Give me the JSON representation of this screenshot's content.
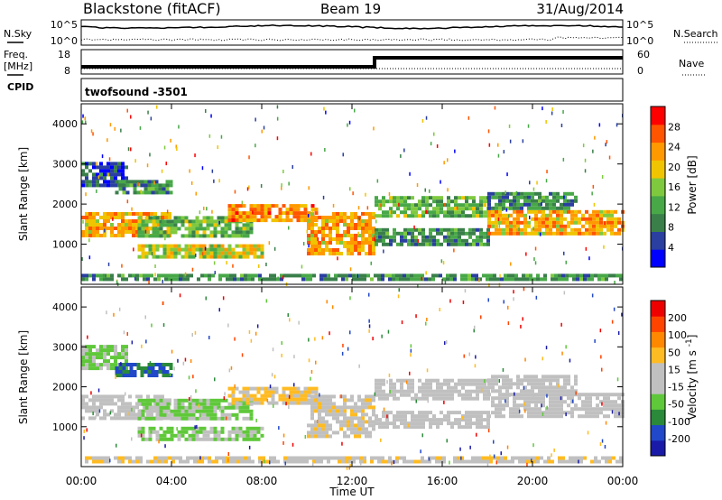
{
  "title": {
    "station": "Blackstone (fitACF)",
    "beam": "Beam 19",
    "date": "31/Aug/2014"
  },
  "noise_panel": {
    "left_label": "N.Sky",
    "left_ticks": [
      "10^5",
      "10^0"
    ],
    "right_ticks": [
      "10^5",
      "10^0"
    ],
    "right_label": "N.Search"
  },
  "freq_panel": {
    "left_label_line1": "Freq.",
    "left_label_line2": "[MHz]",
    "left_ticks": [
      "18",
      "8"
    ],
    "right_ticks": [
      "60",
      "0"
    ],
    "right_label": "Nave"
  },
  "cpid_panel": {
    "label": "CPID",
    "value": "twofsound -3501"
  },
  "colors": {
    "power_scale": [
      "#0000ff",
      "#2a3fa0",
      "#3a7f4a",
      "#48a848",
      "#7fc93f",
      "#f0c400",
      "#ff9900",
      "#ff5500",
      "#ff0000"
    ],
    "velocity_scale": [
      "#1a1aa8",
      "#2048c8",
      "#2b8a3a",
      "#5fc83a",
      "#c0c0c0",
      "#c0c0c0",
      "#ffbb22",
      "#ff8800",
      "#ff4400",
      "#ee0000"
    ]
  },
  "chart_data": [
    {
      "type": "heatmap",
      "name": "power",
      "ylabel": "Slant Range [km]",
      "yticks": [
        "1000",
        "2000",
        "3000",
        "4000"
      ],
      "ylim": [
        0,
        4500
      ],
      "xlim": [
        0,
        24
      ],
      "colorbar_label": "Power [dB]",
      "colorbar_ticks": [
        "28",
        "24",
        "20",
        "16",
        "12",
        "8",
        "4"
      ],
      "colorbar_range": [
        0,
        32
      ],
      "bands": [
        {
          "t0": 0.0,
          "t1": 4.0,
          "r0": 1250,
          "r1": 1800,
          "level": 22
        },
        {
          "t0": 0.0,
          "t1": 2.0,
          "r0": 2500,
          "r1": 3050,
          "level": 6
        },
        {
          "t0": 1.5,
          "t1": 4.0,
          "r0": 2300,
          "r1": 2600,
          "level": 10
        },
        {
          "t0": 2.5,
          "t1": 7.5,
          "r0": 1200,
          "r1": 1700,
          "level": 14
        },
        {
          "t0": 2.5,
          "t1": 8.0,
          "r0": 700,
          "r1": 1000,
          "level": 18
        },
        {
          "t0": 6.5,
          "t1": 10.5,
          "r0": 1550,
          "r1": 2000,
          "level": 24
        },
        {
          "t0": 10.0,
          "t1": 13.0,
          "r0": 800,
          "r1": 1800,
          "level": 22
        },
        {
          "t0": 13.0,
          "t1": 18.0,
          "r0": 1700,
          "r1": 2200,
          "level": 14
        },
        {
          "t0": 13.0,
          "t1": 18.0,
          "r0": 1000,
          "r1": 1400,
          "level": 10
        },
        {
          "t0": 18.0,
          "t1": 24.0,
          "r0": 1300,
          "r1": 1850,
          "level": 22
        },
        {
          "t0": 18.0,
          "t1": 22.0,
          "r0": 1900,
          "r1": 2300,
          "level": 10
        },
        {
          "t0": 0.0,
          "t1": 24.0,
          "r0": 120,
          "r1": 260,
          "level": 10
        }
      ]
    },
    {
      "type": "heatmap",
      "name": "velocity",
      "ylabel": "Slant Range [km]",
      "yticks": [
        "1000",
        "2000",
        "3000",
        "4000"
      ],
      "ylim": [
        0,
        4500
      ],
      "xlabel": "Time UT",
      "xticks": [
        "00:00",
        "04:00",
        "08:00",
        "12:00",
        "16:00",
        "20:00",
        "00:00"
      ],
      "xlim": [
        0,
        24
      ],
      "colorbar_label": "Velocity [m s^-1]",
      "colorbar_ticks": [
        "200",
        "100",
        "50",
        "15",
        "-15",
        "-50",
        "-100",
        "-200"
      ],
      "colorbar_range": [
        -250,
        250
      ],
      "bands": [
        {
          "t0": 0.0,
          "t1": 4.0,
          "r0": 1250,
          "r1": 1800,
          "level": 0
        },
        {
          "t0": 0.0,
          "t1": 2.0,
          "r0": 2500,
          "r1": 3050,
          "level": -60
        },
        {
          "t0": 1.5,
          "t1": 4.0,
          "r0": 2300,
          "r1": 2600,
          "level": -150
        },
        {
          "t0": 2.5,
          "t1": 7.5,
          "r0": 1200,
          "r1": 1700,
          "level": -60
        },
        {
          "t0": 2.5,
          "t1": 8.0,
          "r0": 700,
          "r1": 1000,
          "level": -60
        },
        {
          "t0": 6.5,
          "t1": 10.5,
          "r0": 1550,
          "r1": 2000,
          "level": 60
        },
        {
          "t0": 10.0,
          "t1": 13.0,
          "r0": 800,
          "r1": 1800,
          "level": 30
        },
        {
          "t0": 13.0,
          "t1": 18.0,
          "r0": 1700,
          "r1": 2200,
          "level": 0
        },
        {
          "t0": 13.0,
          "t1": 18.0,
          "r0": 1000,
          "r1": 1400,
          "level": 0
        },
        {
          "t0": 18.0,
          "t1": 24.0,
          "r0": 1300,
          "r1": 1850,
          "level": 0
        },
        {
          "t0": 18.0,
          "t1": 22.0,
          "r0": 1900,
          "r1": 2300,
          "level": 0
        },
        {
          "t0": 0.0,
          "t1": 24.0,
          "r0": 120,
          "r1": 260,
          "level": 30
        }
      ]
    }
  ]
}
